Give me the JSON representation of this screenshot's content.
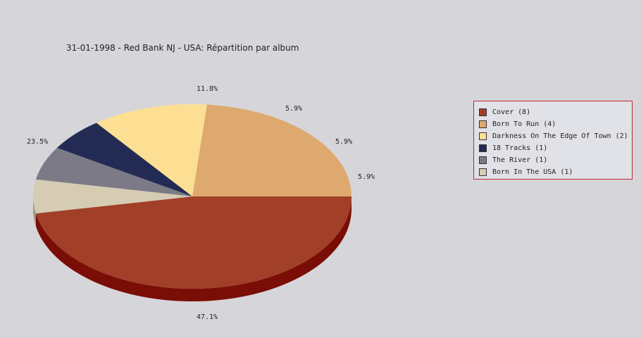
{
  "chart_data": {
    "type": "pie",
    "title": "31-01-1998 - Red Bank NJ - USA:  Répartition par album",
    "slices": [
      {
        "label": "Cover",
        "count": 8,
        "percent": "47.1%",
        "color": "#a13f28",
        "side_color": "#7a0e06",
        "legend": "Cover (8)"
      },
      {
        "label": "Born To Run",
        "count": 4,
        "percent": "23.5%",
        "color": "#dea96e",
        "side_color": "#a77a46",
        "legend": "Born To Run (4)"
      },
      {
        "label": "Darkness On The Edge Of Town",
        "count": 2,
        "percent": "11.8%",
        "color": "#fddf93",
        "side_color": "#bfa565",
        "legend": "Darkness On The Edge Of Town (2)"
      },
      {
        "label": "18 Tracks",
        "count": 1,
        "percent": "5.9%",
        "color": "#232b55",
        "side_color": "#151a36",
        "legend": "18 Tracks (1)"
      },
      {
        "label": "The River",
        "count": 1,
        "percent": "5.9%",
        "color": "#7c7a86",
        "side_color": "#55535d",
        "legend": "The River (1)"
      },
      {
        "label": "Born In The USA",
        "count": 1,
        "percent": "5.9%",
        "color": "#d6cbb3",
        "side_color": "#9f9580",
        "legend": "Born In The USA (1)"
      }
    ],
    "legend_position": "right"
  }
}
